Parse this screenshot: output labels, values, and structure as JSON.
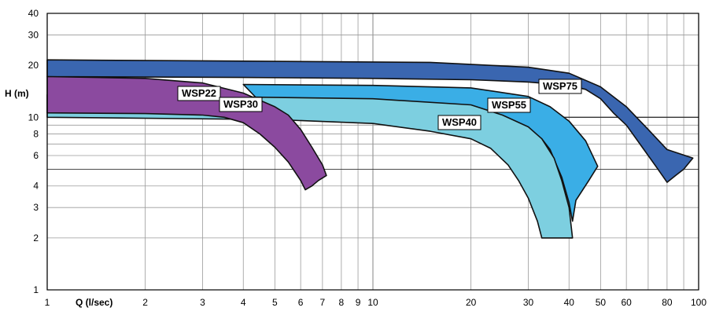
{
  "chart_data": {
    "type": "area",
    "x_scale": "log",
    "y_scale": "log",
    "xlim": [
      1,
      100
    ],
    "ylim": [
      1,
      40
    ],
    "xlabel": "Q (l/sec)",
    "ylabel": "H (m)",
    "x_ticks": [
      1,
      2,
      3,
      4,
      5,
      6,
      7,
      8,
      9,
      10,
      20,
      30,
      40,
      50,
      60,
      80,
      100
    ],
    "x_tick_labels": [
      "1",
      "2",
      "3",
      "4",
      "5",
      "6",
      "7",
      "8",
      "9",
      "10",
      "20",
      "30",
      "40",
      "50",
      "60",
      "80",
      "100"
    ],
    "y_ticks": [
      1,
      2,
      3,
      4,
      6,
      8,
      10,
      20,
      30,
      40
    ],
    "y_tick_labels": [
      "1",
      "2",
      "3",
      "4",
      "6",
      "8",
      "10",
      "20",
      "30",
      "40"
    ],
    "grid": true,
    "series": [
      {
        "name": "WSP75",
        "color": "#3a66b0",
        "outline": [
          [
            1,
            21.5
          ],
          [
            15,
            20.8
          ],
          [
            30,
            19.5
          ],
          [
            40,
            18.0
          ],
          [
            50,
            15.0
          ],
          [
            60,
            11.5
          ],
          [
            70,
            8.5
          ],
          [
            80,
            6.5
          ],
          [
            96,
            5.8
          ],
          [
            90,
            5.0
          ],
          [
            85,
            4.6
          ],
          [
            80,
            4.2
          ],
          [
            75,
            5.0
          ],
          [
            70,
            6.0
          ],
          [
            60,
            9.0
          ],
          [
            55,
            10.5
          ],
          [
            50,
            12.8
          ],
          [
            45,
            14.5
          ],
          [
            40,
            15.3
          ],
          [
            30,
            16.0
          ],
          [
            20,
            16.5
          ],
          [
            10,
            16.8
          ],
          [
            4,
            17.0
          ],
          [
            1,
            17.2
          ]
        ]
      },
      {
        "name": "WSP55",
        "color": "#3aaee6",
        "outline": [
          [
            4,
            15.5
          ],
          [
            10,
            15.3
          ],
          [
            20,
            14.8
          ],
          [
            30,
            13.2
          ],
          [
            35,
            11.5
          ],
          [
            40,
            9.5
          ],
          [
            45,
            7.3
          ],
          [
            49,
            5.2
          ],
          [
            46,
            4.3
          ],
          [
            42,
            3.3
          ],
          [
            41,
            2.5
          ],
          [
            40,
            3.2
          ],
          [
            38,
            4.5
          ],
          [
            35,
            6.5
          ],
          [
            33,
            7.5
          ],
          [
            30,
            8.7
          ],
          [
            28,
            9.3
          ],
          [
            25,
            9.6
          ],
          [
            20,
            9.7
          ],
          [
            10,
            9.9
          ],
          [
            5,
            10.0
          ]
        ]
      },
      {
        "name": "WSP40",
        "color": "#7dcfe0",
        "outline": [
          [
            1,
            13.5
          ],
          [
            3,
            13.2
          ],
          [
            10,
            12.8
          ],
          [
            20,
            11.8
          ],
          [
            25,
            10.3
          ],
          [
            30,
            8.8
          ],
          [
            33,
            7.5
          ],
          [
            36,
            5.8
          ],
          [
            38,
            4.3
          ],
          [
            40,
            3.0
          ],
          [
            41,
            2.0
          ],
          [
            33,
            2.0
          ],
          [
            32,
            2.5
          ],
          [
            30,
            3.4
          ],
          [
            28,
            4.3
          ],
          [
            26,
            5.3
          ],
          [
            23,
            6.6
          ],
          [
            20,
            7.5
          ],
          [
            15,
            8.3
          ],
          [
            10,
            9.2
          ],
          [
            5,
            9.7
          ],
          [
            1,
            10.0
          ]
        ]
      },
      {
        "name": "WSP30",
        "color": "#8b4a9f",
        "outline": [
          [
            1,
            17.2
          ],
          [
            2,
            16.8
          ],
          [
            3,
            15.8
          ],
          [
            4,
            13.8
          ],
          [
            5,
            11.5
          ],
          [
            5.5,
            10.3
          ],
          [
            6,
            8.5
          ],
          [
            6.5,
            6.7
          ],
          [
            7,
            5.3
          ],
          [
            7.2,
            4.6
          ],
          [
            6.8,
            4.3
          ],
          [
            6.5,
            4.0
          ],
          [
            6.2,
            3.8
          ],
          [
            6,
            4.3
          ],
          [
            5.5,
            5.5
          ],
          [
            5,
            6.7
          ],
          [
            4.5,
            8.0
          ],
          [
            4,
            9.3
          ],
          [
            3.5,
            10.0
          ],
          [
            3,
            10.3
          ],
          [
            2,
            10.5
          ],
          [
            1,
            10.6
          ]
        ]
      }
    ],
    "labels": [
      "WSP22",
      "WSP30",
      "WSP40",
      "WSP55",
      "WSP75"
    ]
  }
}
